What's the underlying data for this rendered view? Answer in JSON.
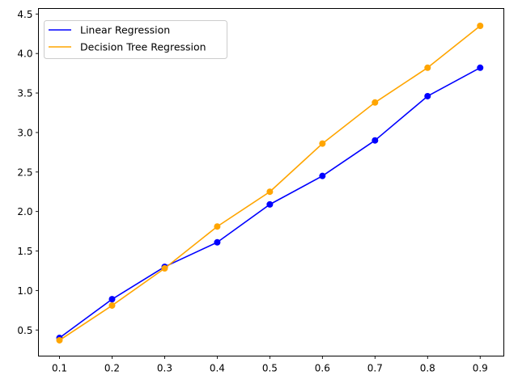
{
  "chart_data": {
    "type": "line",
    "title": "",
    "xlabel": "",
    "ylabel": "",
    "x": [
      0.1,
      0.2,
      0.3,
      0.4,
      0.5,
      0.6,
      0.7,
      0.8,
      0.9
    ],
    "series": [
      {
        "name": "Linear Regression",
        "color": "#0000ff",
        "values": [
          0.4,
          0.89,
          1.3,
          1.61,
          2.09,
          2.45,
          2.9,
          3.46,
          3.82
        ]
      },
      {
        "name": "Decision Tree Regression",
        "color": "#ffa500",
        "values": [
          0.37,
          0.81,
          1.28,
          1.81,
          2.25,
          2.86,
          3.38,
          3.82,
          4.35
        ]
      }
    ],
    "x_ticks": [
      "0.1",
      "0.2",
      "0.3",
      "0.4",
      "0.5",
      "0.6",
      "0.7",
      "0.8",
      "0.9"
    ],
    "y_ticks": [
      "0.5",
      "1.0",
      "1.5",
      "2.0",
      "2.5",
      "3.0",
      "3.5",
      "4.0",
      "4.5"
    ],
    "xlim": [
      0.06,
      0.945
    ],
    "ylim": [
      0.17,
      4.57
    ],
    "grid": false,
    "legend_position": "top-left"
  }
}
